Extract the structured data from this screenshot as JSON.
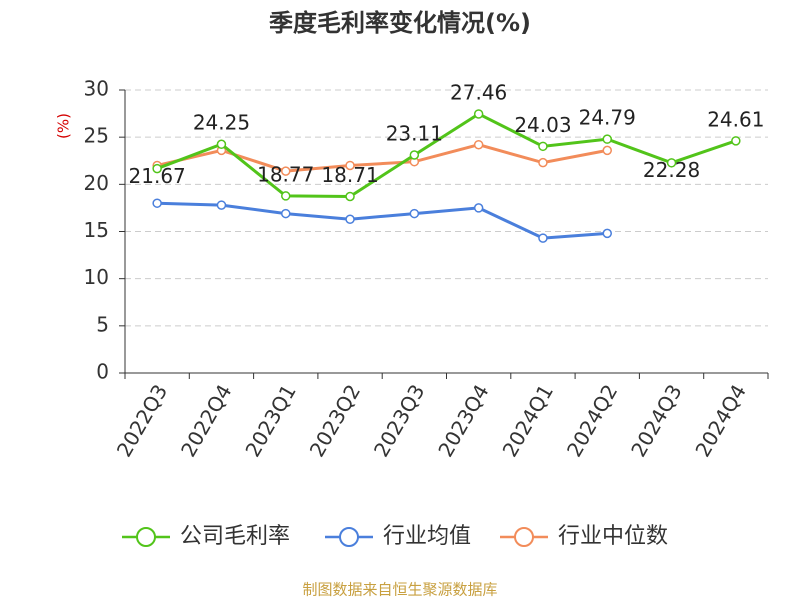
{
  "chart_data": {
    "type": "line",
    "title": "季度毛利率变化情况(%)",
    "y_label": "(%)",
    "categories": [
      "2022Q3",
      "2022Q4",
      "2023Q1",
      "2023Q2",
      "2023Q3",
      "2023Q4",
      "2024Q1",
      "2024Q2",
      "2024Q3",
      "2024Q4"
    ],
    "series": [
      {
        "name": "公司毛利率",
        "color": "#52c41a",
        "values": [
          21.67,
          24.25,
          18.77,
          18.71,
          23.11,
          27.46,
          24.03,
          24.79,
          22.28,
          24.61
        ],
        "show_labels": true
      },
      {
        "name": "行业均值",
        "color": "#4a7fdc",
        "values": [
          18.0,
          17.8,
          16.9,
          16.3,
          16.9,
          17.5,
          14.3,
          14.8,
          null,
          null
        ],
        "show_labels": false
      },
      {
        "name": "行业中位数",
        "color": "#f28c5a",
        "values": [
          22.0,
          23.6,
          21.4,
          22.0,
          22.4,
          24.2,
          22.3,
          23.6,
          null,
          null
        ],
        "show_labels": false
      }
    ],
    "ylim": [
      0,
      30
    ],
    "yticks": [
      0,
      5,
      10,
      15,
      20,
      25,
      30
    ],
    "grid": true,
    "source": "制图数据来自恒生聚源数据库"
  }
}
